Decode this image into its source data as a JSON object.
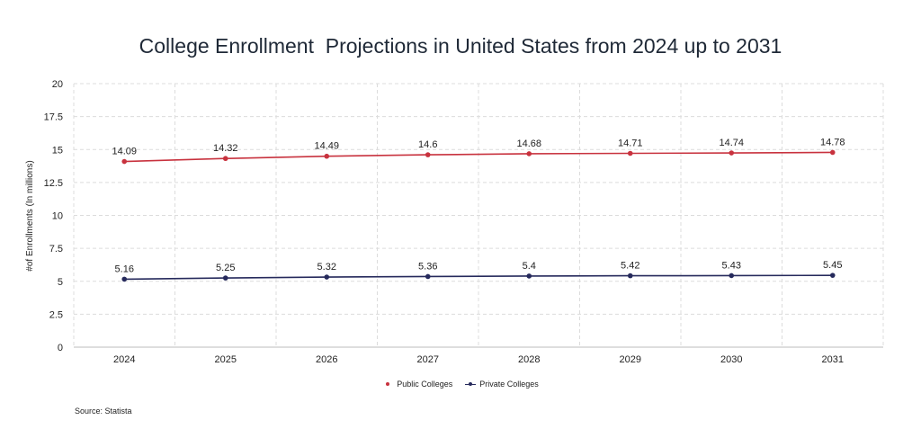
{
  "chart_data": {
    "type": "line",
    "title": "College Enrollment  Projections in United States from 2024 up to 2031",
    "ylabel": "#of Enrollments (In millions)",
    "xlabel": "",
    "categories": [
      "2024",
      "2025",
      "2026",
      "2027",
      "2028",
      "2029",
      "2030",
      "2031"
    ],
    "ylim": [
      0,
      20
    ],
    "yticks": [
      "0",
      "2.5",
      "5",
      "7.5",
      "10",
      "12.5",
      "15",
      "17.5",
      "20"
    ],
    "grid": true,
    "legend_position": "bottom",
    "series": [
      {
        "name": "Public Colleges",
        "color": "#c8323e",
        "values": [
          14.09,
          14.32,
          14.49,
          14.6,
          14.68,
          14.71,
          14.74,
          14.78
        ],
        "labels": [
          "14.09",
          "14.32",
          "14.49",
          "14.6",
          "14.68",
          "14.71",
          "14.74",
          "14.78"
        ]
      },
      {
        "name": "Private Colleges",
        "color": "#262a5c",
        "values": [
          5.16,
          5.25,
          5.32,
          5.36,
          5.4,
          5.42,
          5.43,
          5.45
        ],
        "labels": [
          "5.16",
          "5.25",
          "5.32",
          "5.36",
          "5.4",
          "5.42",
          "5.43",
          "5.45"
        ]
      }
    ]
  },
  "source": "Source: Statista"
}
